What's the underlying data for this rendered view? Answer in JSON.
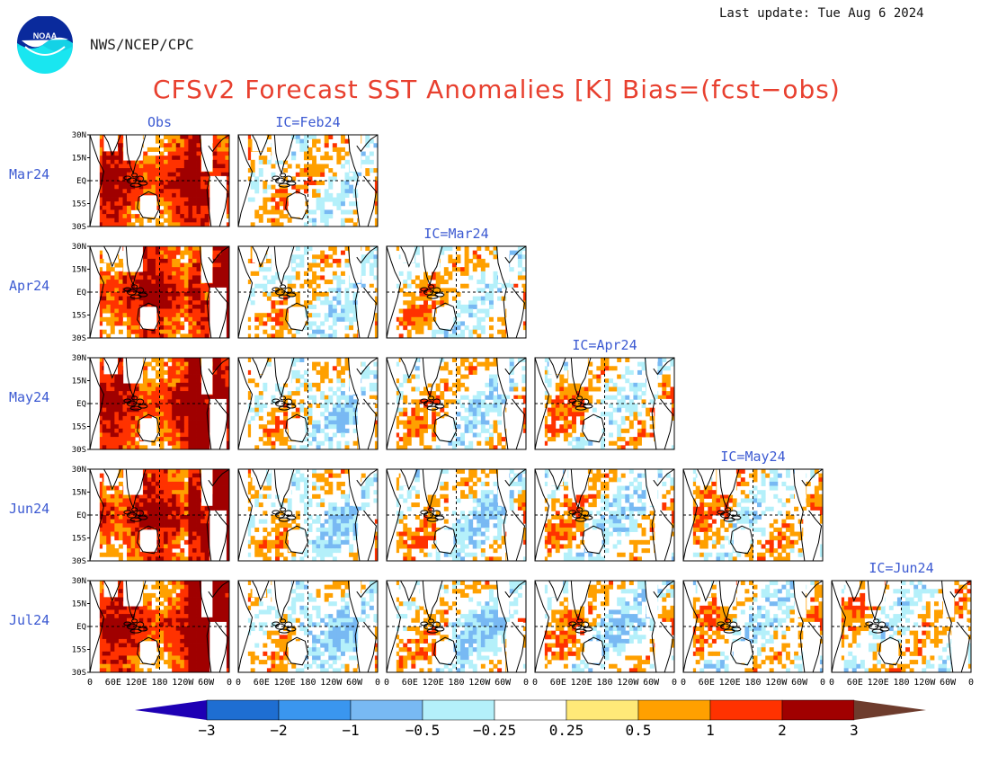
{
  "header": {
    "org": "NWS/NCEP/CPC",
    "last_update": "Last update: Tue Aug 6 2024",
    "title": "CFSv2 Forecast SST Anomalies [K] Bias=(fcst−obs)"
  },
  "chart_data": {
    "type": "heatmap",
    "title": "CFSv2 Forecast SST Anomalies [K] Bias=(fcst−obs)",
    "unit": "K",
    "rows": [
      "Mar24",
      "Apr24",
      "May24",
      "Jun24",
      "Jul24"
    ],
    "columns": [
      "Obs",
      "IC=Feb24",
      "IC=Mar24",
      "IC=Apr24",
      "IC=May24",
      "IC=Jun24"
    ],
    "lat_ticks": [
      "30N",
      "15N",
      "EQ",
      "15S",
      "30S"
    ],
    "lon_ticks": [
      "0",
      "60E",
      "120E",
      "180",
      "120W",
      "60W",
      "0"
    ],
    "colorbar": {
      "ticks": [
        "−3",
        "−2",
        "−1",
        "−0.5",
        "−0.25",
        "0.25",
        "0.5",
        "1",
        "2",
        "3"
      ],
      "colors": [
        "#1e00b4",
        "#1e6ed2",
        "#3a96ef",
        "#78b9f3",
        "#b4f0fa",
        "#ffffff",
        "#ffe978",
        "#ffa000",
        "#ff3200",
        "#a00000",
        "#6e3c2d"
      ]
    }
  }
}
